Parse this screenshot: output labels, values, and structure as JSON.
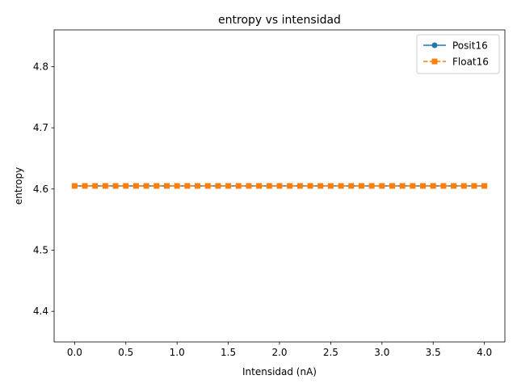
{
  "chart_data": {
    "type": "line",
    "title": "entropy vs intensidad",
    "xlabel": "Intensidad (nA)",
    "ylabel": "entropy",
    "xlim": [
      -0.2,
      4.2
    ],
    "ylim": [
      4.35,
      4.86
    ],
    "xticks": [
      0.0,
      0.5,
      1.0,
      1.5,
      2.0,
      2.5,
      3.0,
      3.5,
      4.0
    ],
    "xtick_labels": [
      "0.0",
      "0.5",
      "1.0",
      "1.5",
      "2.0",
      "2.5",
      "3.0",
      "3.5",
      "4.0"
    ],
    "yticks": [
      4.4,
      4.5,
      4.6,
      4.7,
      4.8
    ],
    "ytick_labels": [
      "4.4",
      "4.5",
      "4.6",
      "4.7",
      "4.8"
    ],
    "grid": false,
    "legend_position": "top-right",
    "x": [
      0.0,
      0.1,
      0.2,
      0.3,
      0.4,
      0.5,
      0.6,
      0.7,
      0.8,
      0.9,
      1.0,
      1.1,
      1.2,
      1.3,
      1.4,
      1.5,
      1.6,
      1.7,
      1.8,
      1.9,
      2.0,
      2.1,
      2.2,
      2.3,
      2.4,
      2.5,
      2.6,
      2.7,
      2.8,
      2.9,
      3.0,
      3.1,
      3.2,
      3.3,
      3.4,
      3.5,
      3.6,
      3.7,
      3.8,
      3.9,
      4.0
    ],
    "series": [
      {
        "name": "Posit16",
        "color": "#1f77b4",
        "marker": "circle",
        "linestyle": "solid",
        "values": [
          4.605,
          4.605,
          4.605,
          4.605,
          4.605,
          4.605,
          4.605,
          4.605,
          4.605,
          4.605,
          4.605,
          4.605,
          4.605,
          4.605,
          4.605,
          4.605,
          4.605,
          4.605,
          4.605,
          4.605,
          4.605,
          4.605,
          4.605,
          4.605,
          4.605,
          4.605,
          4.605,
          4.605,
          4.605,
          4.605,
          4.605,
          4.605,
          4.605,
          4.605,
          4.605,
          4.605,
          4.605,
          4.605,
          4.605,
          4.605,
          4.605
        ]
      },
      {
        "name": "Float16",
        "color": "#ff7f0e",
        "marker": "square",
        "linestyle": "dashed",
        "values": [
          4.605,
          4.605,
          4.605,
          4.605,
          4.605,
          4.605,
          4.605,
          4.605,
          4.605,
          4.605,
          4.605,
          4.605,
          4.605,
          4.605,
          4.605,
          4.605,
          4.605,
          4.605,
          4.605,
          4.605,
          4.605,
          4.605,
          4.605,
          4.605,
          4.605,
          4.605,
          4.605,
          4.605,
          4.605,
          4.605,
          4.605,
          4.605,
          4.605,
          4.605,
          4.605,
          4.605,
          4.605,
          4.605,
          4.605,
          4.605,
          4.605
        ]
      }
    ]
  }
}
